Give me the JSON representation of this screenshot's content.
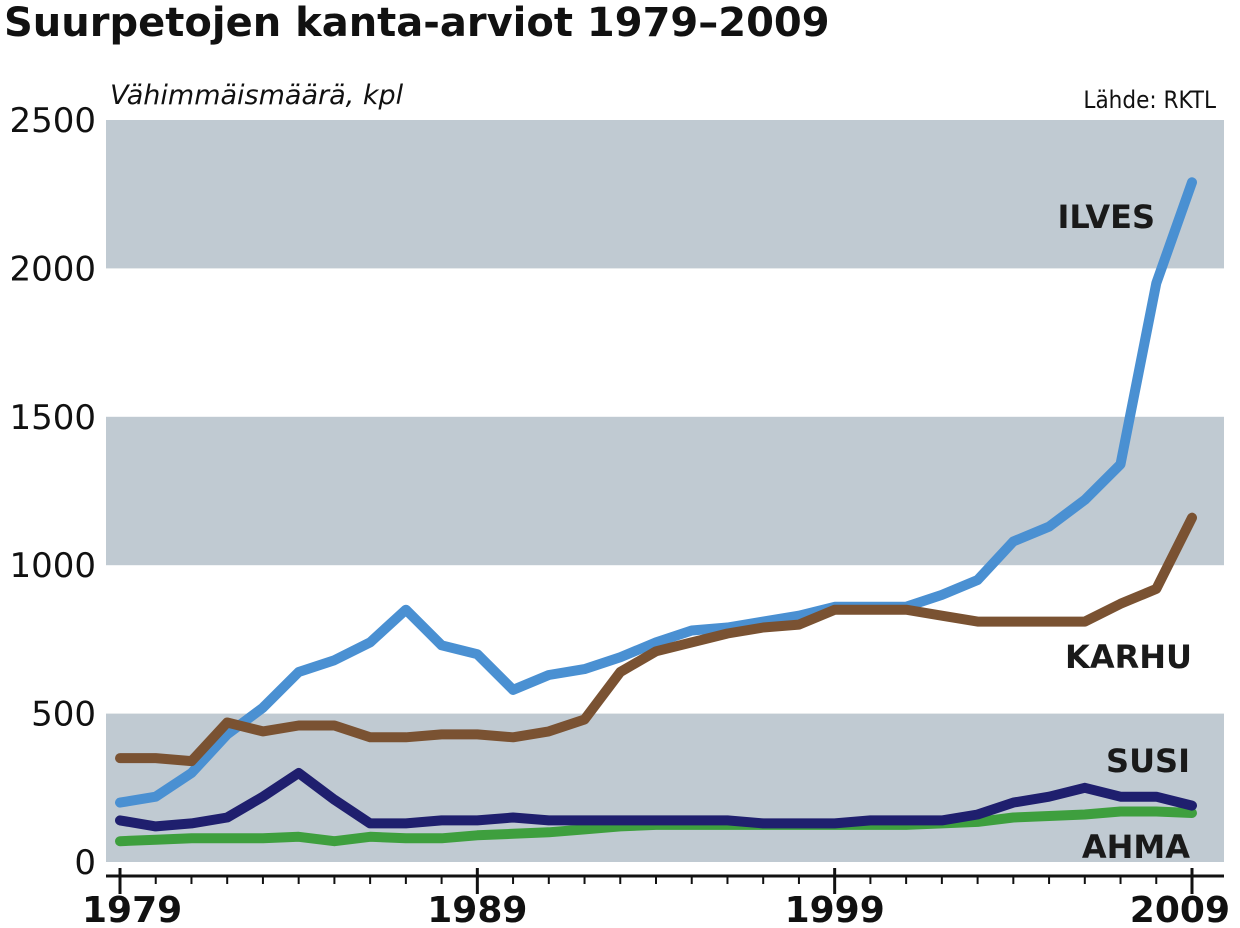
{
  "chart_data": {
    "type": "line",
    "title": "Suurpetojen kanta-arviot 1979–2009",
    "ylabel": "Vähimmäismäärä, kpl",
    "source": "Lähde: RKTL",
    "xlim": [
      1979,
      2009
    ],
    "ylim": [
      0,
      2500
    ],
    "yticks": [
      "0",
      "500",
      "1000",
      "1500",
      "2000",
      "2500"
    ],
    "xticks": [
      "1979",
      "1989",
      "1999",
      "2009"
    ],
    "x": [
      1979,
      1980,
      1981,
      1982,
      1983,
      1984,
      1985,
      1986,
      1987,
      1988,
      1989,
      1990,
      1991,
      1992,
      1993,
      1994,
      1995,
      1996,
      1997,
      1998,
      1999,
      2000,
      2001,
      2002,
      2003,
      2004,
      2005,
      2006,
      2007,
      2008,
      2009
    ],
    "series": [
      {
        "name": "ILVES",
        "color": "#4a90d2",
        "values": [
          200,
          220,
          300,
          430,
          520,
          640,
          680,
          740,
          850,
          730,
          700,
          580,
          630,
          650,
          690,
          740,
          780,
          790,
          810,
          830,
          860,
          860,
          860,
          900,
          950,
          1080,
          1130,
          1220,
          1340,
          1950,
          2290
        ]
      },
      {
        "name": "KARHU",
        "color": "#7a5232",
        "values": [
          350,
          350,
          340,
          470,
          440,
          460,
          460,
          420,
          420,
          430,
          430,
          420,
          440,
          480,
          640,
          710,
          740,
          770,
          790,
          800,
          850,
          850,
          850,
          830,
          810,
          810,
          810,
          810,
          870,
          920,
          1160
        ]
      },
      {
        "name": "SUSI",
        "color": "#1f1f6e",
        "values": [
          140,
          120,
          130,
          150,
          220,
          300,
          210,
          130,
          130,
          140,
          140,
          150,
          140,
          140,
          140,
          140,
          140,
          140,
          130,
          130,
          130,
          140,
          140,
          140,
          160,
          200,
          220,
          250,
          220,
          220,
          190
        ]
      },
      {
        "name": "AHMA",
        "color": "#3e9f3e",
        "values": [
          70,
          75,
          80,
          80,
          80,
          85,
          70,
          85,
          80,
          80,
          90,
          95,
          100,
          110,
          120,
          125,
          125,
          125,
          125,
          125,
          125,
          125,
          125,
          130,
          135,
          150,
          155,
          160,
          170,
          170,
          165
        ]
      }
    ],
    "bands": [
      [
        0,
        500
      ],
      [
        1000,
        1500
      ],
      [
        2000,
        2500
      ]
    ],
    "band_color": "#c0cad2",
    "grid": false,
    "legend": "inline labels at right end of each line"
  }
}
